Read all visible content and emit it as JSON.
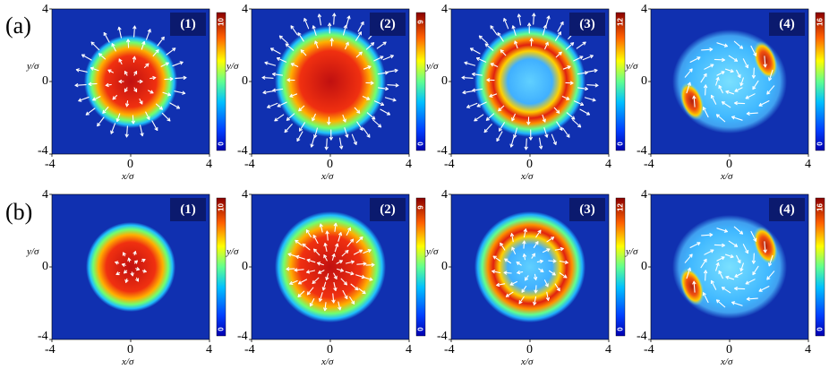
{
  "rows": [
    {
      "label": "(a)",
      "panels": [
        {
          "id": "(1)",
          "cbar_max": "10",
          "cbar_min": "0",
          "pattern": "disk",
          "arrows": "outward"
        },
        {
          "id": "(2)",
          "cbar_max": "9",
          "cbar_min": "0",
          "pattern": "large-disk",
          "arrows": "outward"
        },
        {
          "id": "(3)",
          "cbar_max": "12",
          "cbar_min": "0",
          "pattern": "ring",
          "arrows": "outward"
        },
        {
          "id": "(4)",
          "cbar_max": "16",
          "cbar_min": "0",
          "pattern": "blobs",
          "arrows": "swirl"
        }
      ]
    },
    {
      "label": "(b)",
      "panels": [
        {
          "id": "(1)",
          "cbar_max": "10",
          "cbar_min": "0",
          "pattern": "disk",
          "arrows": "center"
        },
        {
          "id": "(2)",
          "cbar_max": "9",
          "cbar_min": "0",
          "pattern": "large-disk",
          "arrows": "center"
        },
        {
          "id": "(3)",
          "cbar_max": "12",
          "cbar_min": "0",
          "pattern": "ring",
          "arrows": "inner"
        },
        {
          "id": "(4)",
          "cbar_max": "16",
          "cbar_min": "0",
          "pattern": "blobs",
          "arrows": "swirl"
        }
      ]
    }
  ],
  "axes": {
    "x_ticks": [
      "-4",
      "0",
      "4"
    ],
    "y_ticks": [
      "4",
      "0",
      "-4"
    ],
    "xlabel": "x/σ",
    "ylabel": "y/σ"
  },
  "colors": {
    "background": "#1030b0",
    "badge": "#0b1a6e",
    "arrow": "#ffffff"
  }
}
